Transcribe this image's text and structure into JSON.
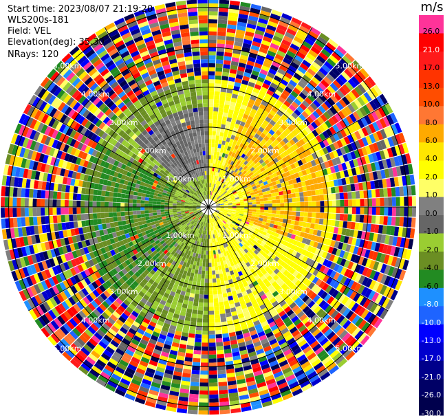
{
  "header": {
    "start_time": "Start time: 2023/08/07 21:19:20",
    "station": "WLS200s-181",
    "field": "Field: VEL",
    "elevation": "Elevation(deg): 35.30",
    "nrays": "NRays: 120"
  },
  "colorbar": {
    "unit": "m/s",
    "ticks": [
      {
        "label": "26.0",
        "color": "#ff3399",
        "text_color": "#000000"
      },
      {
        "label": "21.0",
        "color": "#ff0000",
        "text_color": "#ffffff"
      },
      {
        "label": "17.0",
        "color": "#ff1a1a",
        "text_color": "#000000"
      },
      {
        "label": "13.0",
        "color": "#ff3300",
        "text_color": "#000000"
      },
      {
        "label": "10.0",
        "color": "#ff4d00",
        "text_color": "#000000"
      },
      {
        "label": "8.0",
        "color": "#ff7733",
        "text_color": "#000000"
      },
      {
        "label": "6.0",
        "color": "#ffaa00",
        "text_color": "#000000"
      },
      {
        "label": "4.0",
        "color": "#ffe600",
        "text_color": "#000000"
      },
      {
        "label": "2.0",
        "color": "#ffff00",
        "text_color": "#000000"
      },
      {
        "label": "1.0",
        "color": "#ffff66",
        "text_color": "#000000"
      },
      {
        "label": "0.0",
        "color": "#808080",
        "text_color": "#000000"
      },
      {
        "label": "-1.0",
        "color": "#666666",
        "text_color": "#000000"
      },
      {
        "label": "-2.0",
        "color": "#9acd32",
        "text_color": "#000000"
      },
      {
        "label": "-4.0",
        "color": "#6b8e23",
        "text_color": "#000000"
      },
      {
        "label": "-6.0",
        "color": "#228b22",
        "text_color": "#000000"
      },
      {
        "label": "-8.0",
        "color": "#1e90ff",
        "text_color": "#ffffff"
      },
      {
        "label": "-10.0",
        "color": "#1e64ff",
        "text_color": "#ffffff"
      },
      {
        "label": "-13.0",
        "color": "#0000ff",
        "text_color": "#ffffff"
      },
      {
        "label": "-17.0",
        "color": "#0000cd",
        "text_color": "#ffffff"
      },
      {
        "label": "-21.0",
        "color": "#00008b",
        "text_color": "#ffffff"
      },
      {
        "label": "-26.0",
        "color": "#000066",
        "text_color": "#ffffff"
      },
      {
        "label": "-30.0",
        "color": "#00004d",
        "text_color": "#ffffff"
      }
    ]
  },
  "chart_data": {
    "type": "heatmap",
    "projection": "polar-ppi",
    "title": "",
    "field": "VEL",
    "units": "m/s",
    "nrays": 120,
    "elevation_deg": 35.3,
    "rings_km": [
      1.0,
      2.0,
      3.0,
      4.0,
      5.0
    ],
    "range_labels": [
      "1.00km",
      "2.00km",
      "3.00km",
      "4.00km",
      "5.00km"
    ],
    "spokes_deg": [
      0,
      30,
      60,
      90,
      120,
      150,
      180,
      210,
      240,
      270,
      300,
      330
    ],
    "color_levels": [
      -30,
      -26,
      -21,
      -17,
      -13,
      -10,
      -8,
      -6,
      -4,
      -2,
      -1,
      0,
      1,
      2,
      4,
      6,
      8,
      10,
      13,
      17,
      21,
      26
    ],
    "sectors": [
      {
        "azimuth_deg": [
          0,
          180
        ],
        "range_km": [
          0,
          3.2
        ],
        "velocity_ms": 2.0,
        "note_color": "yellow"
      },
      {
        "azimuth_deg": [
          20,
          110
        ],
        "range_km": [
          1.0,
          3.0
        ],
        "velocity_ms": 5.0
      },
      {
        "azimuth_deg": [
          180,
          360
        ],
        "range_km": [
          0,
          3.2
        ],
        "velocity_ms": -3.0
      },
      {
        "azimuth_deg": [
          220,
          300
        ],
        "range_km": [
          1.0,
          3.2
        ],
        "velocity_ms": -5.0
      },
      {
        "azimuth_deg": [
          310,
          360
        ],
        "range_km": [
          0.8,
          2.5
        ],
        "velocity_ms": -0.5
      }
    ],
    "outer_region_km": [
      3.2,
      5.2
    ],
    "outer_region_character": "noise"
  }
}
